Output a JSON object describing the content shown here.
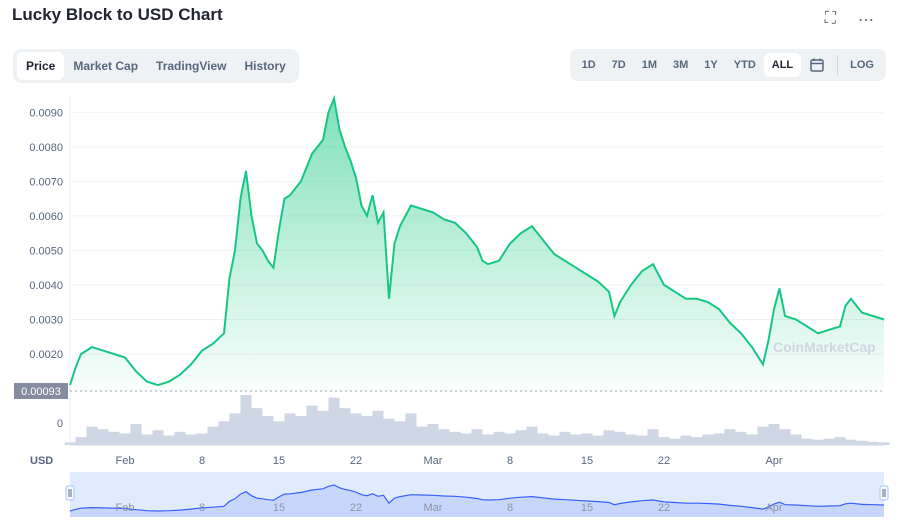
{
  "header": {
    "title": "Lucky Block to USD Chart"
  },
  "tabs": [
    "Price",
    "Market Cap",
    "TradingView",
    "History"
  ],
  "active_tab": 0,
  "ranges": [
    "1D",
    "7D",
    "1M",
    "3M",
    "1Y",
    "YTD",
    "ALL"
  ],
  "active_range": 6,
  "log_label": "LOG",
  "icons": {
    "fullscreen": "fullscreen-icon",
    "more": "more-icon",
    "calendar": "calendar-icon"
  },
  "currency_label": "USD",
  "watermark": "CoinMarketCap",
  "colors": {
    "line": "#16c784",
    "volume": "#cfd6e4",
    "navigator_line": "#3861fb",
    "baseline_label_bg": "#858ca2"
  },
  "chart_data": {
    "type": "area",
    "ylim": [
      0.0009,
      0.0095
    ],
    "y_ticks": [
      "0.0020",
      "0.0030",
      "0.0040",
      "0.0050",
      "0.0060",
      "0.0070",
      "0.0080",
      "0.0090"
    ],
    "y_tick_values": [
      0.002,
      0.003,
      0.004,
      0.005,
      0.006,
      0.007,
      0.008,
      0.009
    ],
    "baseline_label": "0.00093",
    "baseline_value": 0.00093,
    "volume_zero_label": "0",
    "x_ticks": [
      "Feb",
      "8",
      "15",
      "22",
      "Mar",
      "8",
      "15",
      "22",
      "Apr"
    ],
    "x_tick_days": [
      5,
      12,
      19,
      26,
      33,
      40,
      47,
      54,
      64
    ],
    "x_range_days": [
      0,
      74
    ],
    "price": [
      [
        0,
        0.0011
      ],
      [
        0.5,
        0.0016
      ],
      [
        1,
        0.002
      ],
      [
        1.5,
        0.0021
      ],
      [
        2,
        0.0022
      ],
      [
        3,
        0.0021
      ],
      [
        4,
        0.002
      ],
      [
        5,
        0.0019
      ],
      [
        6,
        0.0015
      ],
      [
        7,
        0.0012
      ],
      [
        8,
        0.0011
      ],
      [
        9,
        0.0012
      ],
      [
        10,
        0.0014
      ],
      [
        11,
        0.0017
      ],
      [
        12,
        0.0021
      ],
      [
        13,
        0.0023
      ],
      [
        14,
        0.0026
      ],
      [
        14.5,
        0.0042
      ],
      [
        15,
        0.005
      ],
      [
        15.5,
        0.0065
      ],
      [
        16,
        0.0073
      ],
      [
        16.5,
        0.006
      ],
      [
        17,
        0.0052
      ],
      [
        17.5,
        0.005
      ],
      [
        18,
        0.0047
      ],
      [
        18.5,
        0.0045
      ],
      [
        19,
        0.0056
      ],
      [
        19.5,
        0.0065
      ],
      [
        20,
        0.0066
      ],
      [
        21,
        0.007
      ],
      [
        22,
        0.0078
      ],
      [
        23,
        0.0082
      ],
      [
        23.5,
        0.009
      ],
      [
        24,
        0.0094
      ],
      [
        24.5,
        0.0085
      ],
      [
        25,
        0.008
      ],
      [
        25.5,
        0.0076
      ],
      [
        26,
        0.0071
      ],
      [
        26.5,
        0.0063
      ],
      [
        27,
        0.006
      ],
      [
        27.5,
        0.0066
      ],
      [
        28,
        0.0058
      ],
      [
        28.5,
        0.0061
      ],
      [
        29,
        0.0036
      ],
      [
        29.5,
        0.0052
      ],
      [
        30,
        0.0057
      ],
      [
        31,
        0.0063
      ],
      [
        32,
        0.0062
      ],
      [
        33,
        0.0061
      ],
      [
        34,
        0.0059
      ],
      [
        35,
        0.0058
      ],
      [
        36,
        0.0055
      ],
      [
        37,
        0.0051
      ],
      [
        37.5,
        0.0047
      ],
      [
        38,
        0.0046
      ],
      [
        39,
        0.0047
      ],
      [
        40,
        0.0052
      ],
      [
        41,
        0.0055
      ],
      [
        42,
        0.0057
      ],
      [
        43,
        0.0053
      ],
      [
        44,
        0.0049
      ],
      [
        45,
        0.0047
      ],
      [
        46,
        0.0045
      ],
      [
        47,
        0.0043
      ],
      [
        48,
        0.0041
      ],
      [
        49,
        0.0038
      ],
      [
        49.5,
        0.0031
      ],
      [
        50,
        0.0035
      ],
      [
        51,
        0.004
      ],
      [
        52,
        0.0044
      ],
      [
        53,
        0.0046
      ],
      [
        54,
        0.004
      ],
      [
        55,
        0.0038
      ],
      [
        56,
        0.0036
      ],
      [
        57,
        0.0036
      ],
      [
        58,
        0.0035
      ],
      [
        59,
        0.0033
      ],
      [
        60,
        0.0029
      ],
      [
        61,
        0.0026
      ],
      [
        62,
        0.0022
      ],
      [
        63,
        0.0017
      ],
      [
        63.5,
        0.0024
      ],
      [
        64,
        0.0033
      ],
      [
        64.5,
        0.0039
      ],
      [
        65,
        0.0031
      ],
      [
        66,
        0.003
      ],
      [
        67,
        0.0028
      ],
      [
        68,
        0.0026
      ],
      [
        69,
        0.0027
      ],
      [
        70,
        0.0028
      ],
      [
        70.5,
        0.0034
      ],
      [
        71,
        0.0036
      ],
      [
        72,
        0.0032
      ],
      [
        73,
        0.0031
      ],
      [
        74,
        0.003
      ]
    ],
    "volume": [
      [
        0,
        0.05
      ],
      [
        1,
        0.15
      ],
      [
        2,
        0.35
      ],
      [
        3,
        0.3
      ],
      [
        4,
        0.25
      ],
      [
        5,
        0.22
      ],
      [
        6,
        0.4
      ],
      [
        7,
        0.2
      ],
      [
        8,
        0.28
      ],
      [
        9,
        0.18
      ],
      [
        10,
        0.25
      ],
      [
        11,
        0.2
      ],
      [
        12,
        0.22
      ],
      [
        13,
        0.35
      ],
      [
        14,
        0.45
      ],
      [
        15,
        0.6
      ],
      [
        16,
        0.95
      ],
      [
        17,
        0.7
      ],
      [
        18,
        0.55
      ],
      [
        19,
        0.45
      ],
      [
        20,
        0.6
      ],
      [
        21,
        0.55
      ],
      [
        22,
        0.75
      ],
      [
        23,
        0.65
      ],
      [
        24,
        0.9
      ],
      [
        25,
        0.7
      ],
      [
        26,
        0.6
      ],
      [
        27,
        0.55
      ],
      [
        28,
        0.65
      ],
      [
        29,
        0.5
      ],
      [
        30,
        0.45
      ],
      [
        31,
        0.6
      ],
      [
        32,
        0.35
      ],
      [
        33,
        0.4
      ],
      [
        34,
        0.3
      ],
      [
        35,
        0.25
      ],
      [
        36,
        0.22
      ],
      [
        37,
        0.3
      ],
      [
        38,
        0.2
      ],
      [
        39,
        0.25
      ],
      [
        40,
        0.22
      ],
      [
        41,
        0.28
      ],
      [
        42,
        0.35
      ],
      [
        43,
        0.22
      ],
      [
        44,
        0.18
      ],
      [
        45,
        0.25
      ],
      [
        46,
        0.2
      ],
      [
        47,
        0.22
      ],
      [
        48,
        0.18
      ],
      [
        49,
        0.28
      ],
      [
        50,
        0.25
      ],
      [
        51,
        0.2
      ],
      [
        52,
        0.18
      ],
      [
        53,
        0.3
      ],
      [
        54,
        0.15
      ],
      [
        55,
        0.12
      ],
      [
        56,
        0.18
      ],
      [
        57,
        0.15
      ],
      [
        58,
        0.2
      ],
      [
        59,
        0.22
      ],
      [
        60,
        0.3
      ],
      [
        61,
        0.25
      ],
      [
        62,
        0.2
      ],
      [
        63,
        0.35
      ],
      [
        64,
        0.4
      ],
      [
        65,
        0.3
      ],
      [
        66,
        0.2
      ],
      [
        67,
        0.12
      ],
      [
        68,
        0.1
      ],
      [
        69,
        0.12
      ],
      [
        70,
        0.15
      ],
      [
        71,
        0.1
      ],
      [
        72,
        0.08
      ],
      [
        73,
        0.06
      ],
      [
        74,
        0.05
      ]
    ]
  }
}
